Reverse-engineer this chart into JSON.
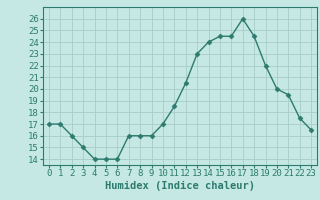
{
  "x": [
    0,
    1,
    2,
    3,
    4,
    5,
    6,
    7,
    8,
    9,
    10,
    11,
    12,
    13,
    14,
    15,
    16,
    17,
    18,
    19,
    20,
    21,
    22,
    23
  ],
  "y": [
    17,
    17,
    16,
    15,
    14,
    14,
    14,
    16,
    16,
    16,
    17,
    18.5,
    20.5,
    23,
    24,
    24.5,
    24.5,
    26,
    24.5,
    22,
    20,
    19.5,
    17.5,
    16.5
  ],
  "line_color": "#2d7b6e",
  "marker": "D",
  "marker_size": 2.5,
  "bg_color": "#c5e8e4",
  "grid_color": "#a8ccc8",
  "xlabel": "Humidex (Indice chaleur)",
  "xlim": [
    -0.5,
    23.5
  ],
  "ylim": [
    13.5,
    27
  ],
  "yticks": [
    14,
    15,
    16,
    17,
    18,
    19,
    20,
    21,
    22,
    23,
    24,
    25,
    26
  ],
  "xticks": [
    0,
    1,
    2,
    3,
    4,
    5,
    6,
    7,
    8,
    9,
    10,
    11,
    12,
    13,
    14,
    15,
    16,
    17,
    18,
    19,
    20,
    21,
    22,
    23
  ],
  "xlabel_fontsize": 7.5,
  "tick_fontsize": 6.5,
  "line_width": 1.0
}
